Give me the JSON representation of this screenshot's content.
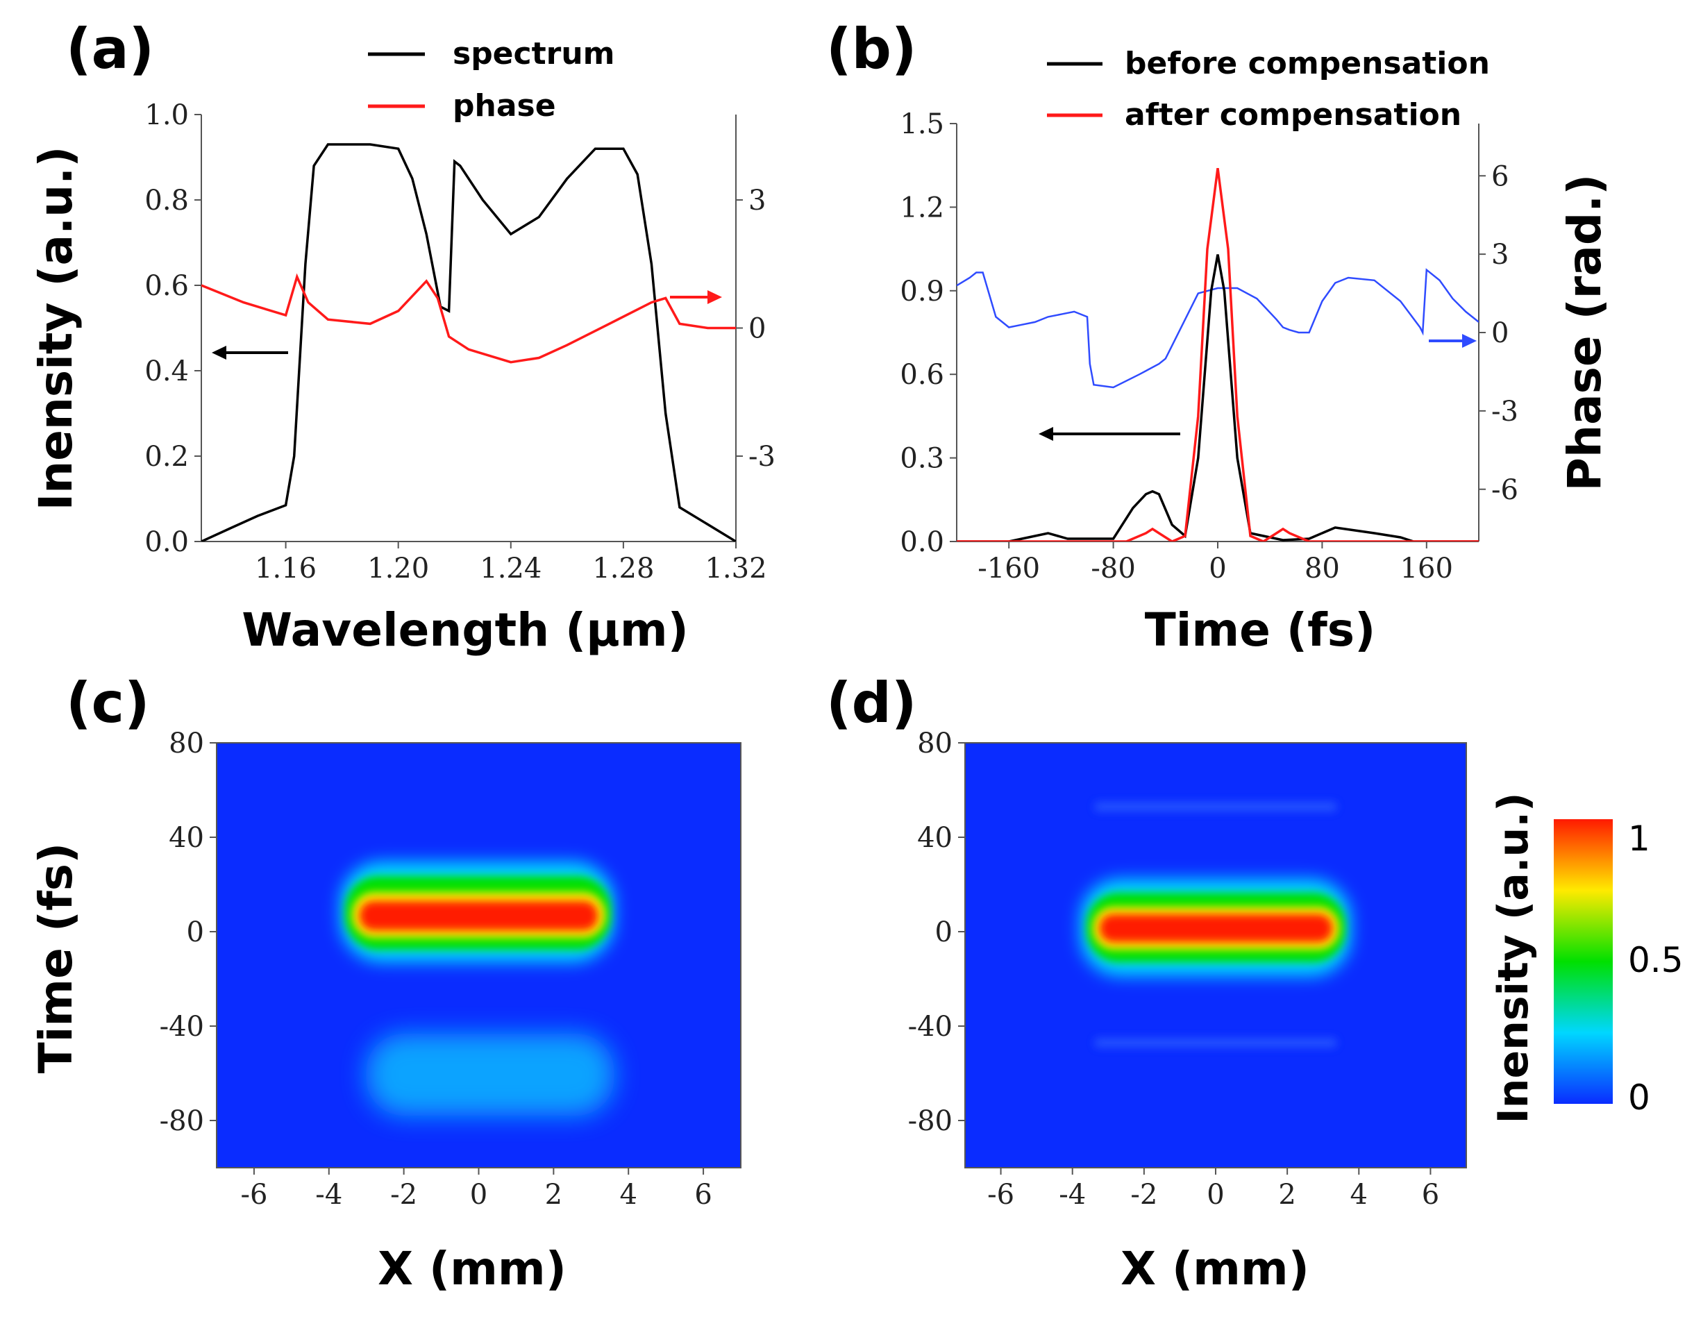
{
  "colors": {
    "black": "#000000",
    "red": "#ff1a1a",
    "blue": "#2f4bff",
    "axis": "#555555"
  },
  "chart_data": [
    {
      "panel_label": "(a)",
      "type": "line",
      "xlabel": "Wavelength (μm)",
      "ylabel": "Inensity (a.u.)",
      "xlim": [
        1.13,
        1.32
      ],
      "ylim": [
        0.0,
        1.0
      ],
      "y2lim": [
        -5,
        5
      ],
      "x_ticks": [
        "1.16",
        "1.20",
        "1.24",
        "1.28",
        "1.32"
      ],
      "x_tick_values": [
        1.16,
        1.2,
        1.24,
        1.28,
        1.32
      ],
      "y_ticks": [
        "0.0",
        "0.2",
        "0.4",
        "0.6",
        "0.8",
        "1.0"
      ],
      "y_tick_values": [
        0.0,
        0.2,
        0.4,
        0.6,
        0.8,
        1.0
      ],
      "y2_ticks": [
        "3",
        "0",
        "-3"
      ],
      "y2_tick_values": [
        3,
        0,
        -3
      ],
      "legend": [
        "spectrum",
        "phase"
      ],
      "series": [
        {
          "name": "spectrum",
          "axis": "left",
          "color": "#000000",
          "x": [
            1.13,
            1.14,
            1.15,
            1.16,
            1.163,
            1.167,
            1.17,
            1.175,
            1.18,
            1.19,
            1.2,
            1.205,
            1.21,
            1.215,
            1.218,
            1.22,
            1.222,
            1.23,
            1.24,
            1.25,
            1.26,
            1.27,
            1.28,
            1.285,
            1.29,
            1.295,
            1.3,
            1.31,
            1.32
          ],
          "values": [
            0.0,
            0.03,
            0.06,
            0.085,
            0.2,
            0.65,
            0.88,
            0.93,
            0.93,
            0.93,
            0.92,
            0.85,
            0.72,
            0.55,
            0.54,
            0.89,
            0.88,
            0.8,
            0.72,
            0.76,
            0.85,
            0.92,
            0.92,
            0.86,
            0.65,
            0.3,
            0.08,
            0.04,
            0.0
          ]
        },
        {
          "name": "phase",
          "axis": "right",
          "color": "#ff1a1a",
          "x": [
            1.13,
            1.145,
            1.16,
            1.164,
            1.168,
            1.175,
            1.19,
            1.2,
            1.21,
            1.214,
            1.218,
            1.225,
            1.24,
            1.25,
            1.26,
            1.275,
            1.29,
            1.295,
            1.3,
            1.31,
            1.32
          ],
          "values": [
            1.0,
            0.6,
            0.3,
            1.2,
            0.6,
            0.2,
            0.1,
            0.4,
            1.1,
            0.7,
            -0.2,
            -0.5,
            -0.8,
            -0.7,
            -0.4,
            0.1,
            0.6,
            0.7,
            0.1,
            0.0,
            0.0
          ]
        }
      ],
      "annotations": [
        "left arrow -> intensity axis",
        "right arrow -> phase axis"
      ]
    },
    {
      "panel_label": "(b)",
      "type": "line",
      "xlabel": "Time (fs)",
      "ylabel": "Phase (rad.)",
      "xlim": [
        -200,
        200
      ],
      "ylim": [
        0.0,
        1.5
      ],
      "y2lim": [
        -8,
        8
      ],
      "x_ticks": [
        "-160",
        "-80",
        "0",
        "80",
        "160"
      ],
      "x_tick_values": [
        -160,
        -80,
        0,
        80,
        160
      ],
      "y_ticks": [
        "0.0",
        "0.3",
        "0.6",
        "0.9",
        "1.2",
        "1.5"
      ],
      "y_tick_values": [
        0.0,
        0.3,
        0.6,
        0.9,
        1.2,
        1.5
      ],
      "y2_ticks": [
        "6",
        "3",
        "0",
        "-3",
        "-6"
      ],
      "y2_tick_values": [
        6,
        3,
        0,
        -3,
        -6
      ],
      "legend": [
        "before compensation",
        "after compensation"
      ],
      "series": [
        {
          "name": "before compensation",
          "axis": "left",
          "color": "#000000",
          "x": [
            -200,
            -160,
            -150,
            -130,
            -115,
            -80,
            -65,
            -55,
            -50,
            -45,
            -35,
            -25,
            -15,
            -5,
            0,
            5,
            15,
            25,
            35,
            50,
            70,
            90,
            120,
            140,
            150,
            200
          ],
          "values": [
            0.0,
            0.0,
            0.01,
            0.03,
            0.01,
            0.01,
            0.12,
            0.17,
            0.18,
            0.17,
            0.06,
            0.02,
            0.3,
            0.9,
            1.03,
            0.9,
            0.3,
            0.03,
            0.02,
            0.005,
            0.01,
            0.05,
            0.03,
            0.015,
            0.0,
            0.0
          ]
        },
        {
          "name": "after compensation",
          "axis": "left",
          "color": "#ff1a1a",
          "x": [
            -200,
            -70,
            -55,
            -50,
            -45,
            -35,
            -25,
            -15,
            -8,
            0,
            8,
            15,
            25,
            35,
            45,
            50,
            55,
            70,
            200
          ],
          "values": [
            0.0,
            0.0,
            0.03,
            0.045,
            0.03,
            0.0,
            0.02,
            0.45,
            1.05,
            1.34,
            1.05,
            0.45,
            0.02,
            0.0,
            0.03,
            0.045,
            0.03,
            0.0,
            0.0
          ]
        },
        {
          "name": "phase",
          "axis": "right",
          "color": "#2f4bff",
          "x": [
            -200,
            -190,
            -185,
            -180,
            -170,
            -160,
            -150,
            -140,
            -130,
            -120,
            -110,
            -100,
            -98,
            -95,
            -80,
            -60,
            -45,
            -40,
            -35,
            -25,
            -15,
            0,
            15,
            30,
            45,
            50,
            55,
            62,
            70,
            80,
            90,
            100,
            120,
            140,
            155,
            157,
            160,
            170,
            180,
            190,
            200
          ],
          "values": [
            1.8,
            2.1,
            2.3,
            2.3,
            0.6,
            0.2,
            0.3,
            0.4,
            0.6,
            0.7,
            0.8,
            0.6,
            -1.2,
            -2.0,
            -2.1,
            -1.6,
            -1.2,
            -1.0,
            -0.5,
            0.5,
            1.5,
            1.7,
            1.7,
            1.3,
            0.5,
            0.2,
            0.1,
            0.0,
            0.0,
            1.2,
            1.9,
            2.1,
            2.0,
            1.2,
            0.2,
            0.0,
            2.4,
            2.0,
            1.3,
            0.8,
            0.4
          ]
        }
      ],
      "annotations": [
        "left arrow -> intensity axis",
        "right arrow -> phase axis"
      ]
    },
    {
      "panel_label": "(c)",
      "type": "heatmap",
      "xlabel": "X (mm)",
      "ylabel": "Time (fs)",
      "xlim": [
        -7,
        7
      ],
      "ylim": [
        -100,
        80
      ],
      "x_ticks": [
        "-6",
        "-4",
        "-2",
        "0",
        "2",
        "4",
        "6"
      ],
      "x_tick_values": [
        -6,
        -4,
        -2,
        0,
        2,
        4,
        6
      ],
      "y_ticks": [
        "80",
        "40",
        "0",
        "-40",
        "-80"
      ],
      "y_tick_values": [
        80,
        40,
        0,
        -40,
        -80
      ],
      "features": [
        {
          "name": "main pulse",
          "x_range": [
            -3.7,
            3.7
          ],
          "t_center": 4,
          "t_halfwidth": 16,
          "peak": 1.0
        },
        {
          "name": "pre pulse",
          "x_range": [
            -3.7,
            3.7
          ],
          "t_center": -55,
          "t_halfwidth": 17,
          "peak": 0.2
        }
      ]
    },
    {
      "panel_label": "(d)",
      "type": "heatmap",
      "xlabel": "X (mm)",
      "ylabel": "Time (fs)",
      "xlim": [
        -7,
        7
      ],
      "ylim": [
        -100,
        80
      ],
      "x_ticks": [
        "-6",
        "-4",
        "-2",
        "0",
        "2",
        "4",
        "6"
      ],
      "x_tick_values": [
        -6,
        -4,
        -2,
        0,
        2,
        4,
        6
      ],
      "y_ticks": [
        "80",
        "40",
        "0",
        "-40",
        "-80"
      ],
      "y_tick_values": [
        80,
        40,
        0,
        -40,
        -80
      ],
      "features": [
        {
          "name": "main pulse",
          "x_range": [
            -3.5,
            3.5
          ],
          "t_center": 0,
          "t_halfwidth": 15,
          "peak": 1.0
        },
        {
          "name": "satellite upper",
          "x_range": [
            -3.3,
            3.3
          ],
          "t_center": 50,
          "t_halfwidth": 4,
          "peak": 0.04
        },
        {
          "name": "satellite lower",
          "x_range": [
            -3.3,
            3.3
          ],
          "t_center": -50,
          "t_halfwidth": 4,
          "peak": 0.04
        }
      ]
    }
  ],
  "colorbar": {
    "label": "Inensity (a.u.)",
    "ticks": [
      "1",
      "0.5",
      "0"
    ],
    "tick_values": [
      1,
      0.5,
      0
    ]
  }
}
